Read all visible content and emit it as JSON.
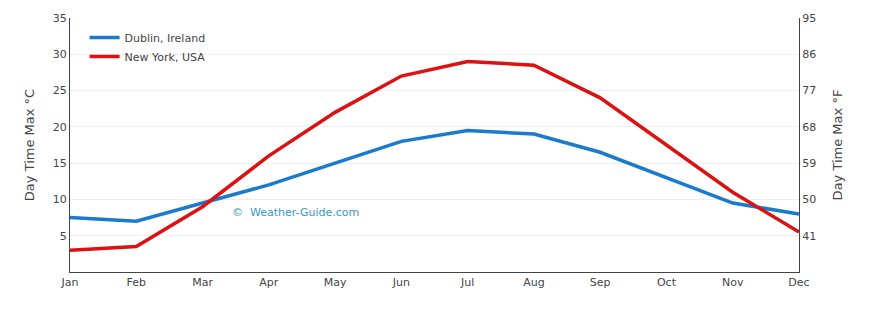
{
  "chart_data": {
    "type": "line",
    "categories": [
      "Jan",
      "Feb",
      "Mar",
      "Apr",
      "May",
      "Jun",
      "Jul",
      "Aug",
      "Sep",
      "Oct",
      "Nov",
      "Dec"
    ],
    "series": [
      {
        "name": "Dublin, Ireland",
        "color": "#1a7acc",
        "values": [
          7.5,
          7.0,
          9.5,
          12.0,
          15.0,
          18.0,
          19.5,
          19.0,
          16.5,
          13.0,
          9.5,
          8.0
        ]
      },
      {
        "name": "New York, USA",
        "color": "#dd1111",
        "values": [
          3.0,
          3.5,
          9.0,
          16.0,
          22.0,
          27.0,
          29.0,
          28.5,
          24.0,
          17.5,
          11.0,
          5.5
        ]
      }
    ],
    "ylabel": "Day Time Max °C",
    "y2label": "Day Time Max °F",
    "ylim": [
      0,
      35
    ],
    "yticks": [
      5,
      10,
      15,
      20,
      25,
      30,
      35
    ],
    "y2lim": [
      32,
      95
    ],
    "y2ticks": [
      41,
      50,
      59,
      68,
      77,
      86,
      95
    ],
    "grid": true,
    "legend": "upper left",
    "annotations": [
      "©  Weather-Guide.com"
    ]
  }
}
